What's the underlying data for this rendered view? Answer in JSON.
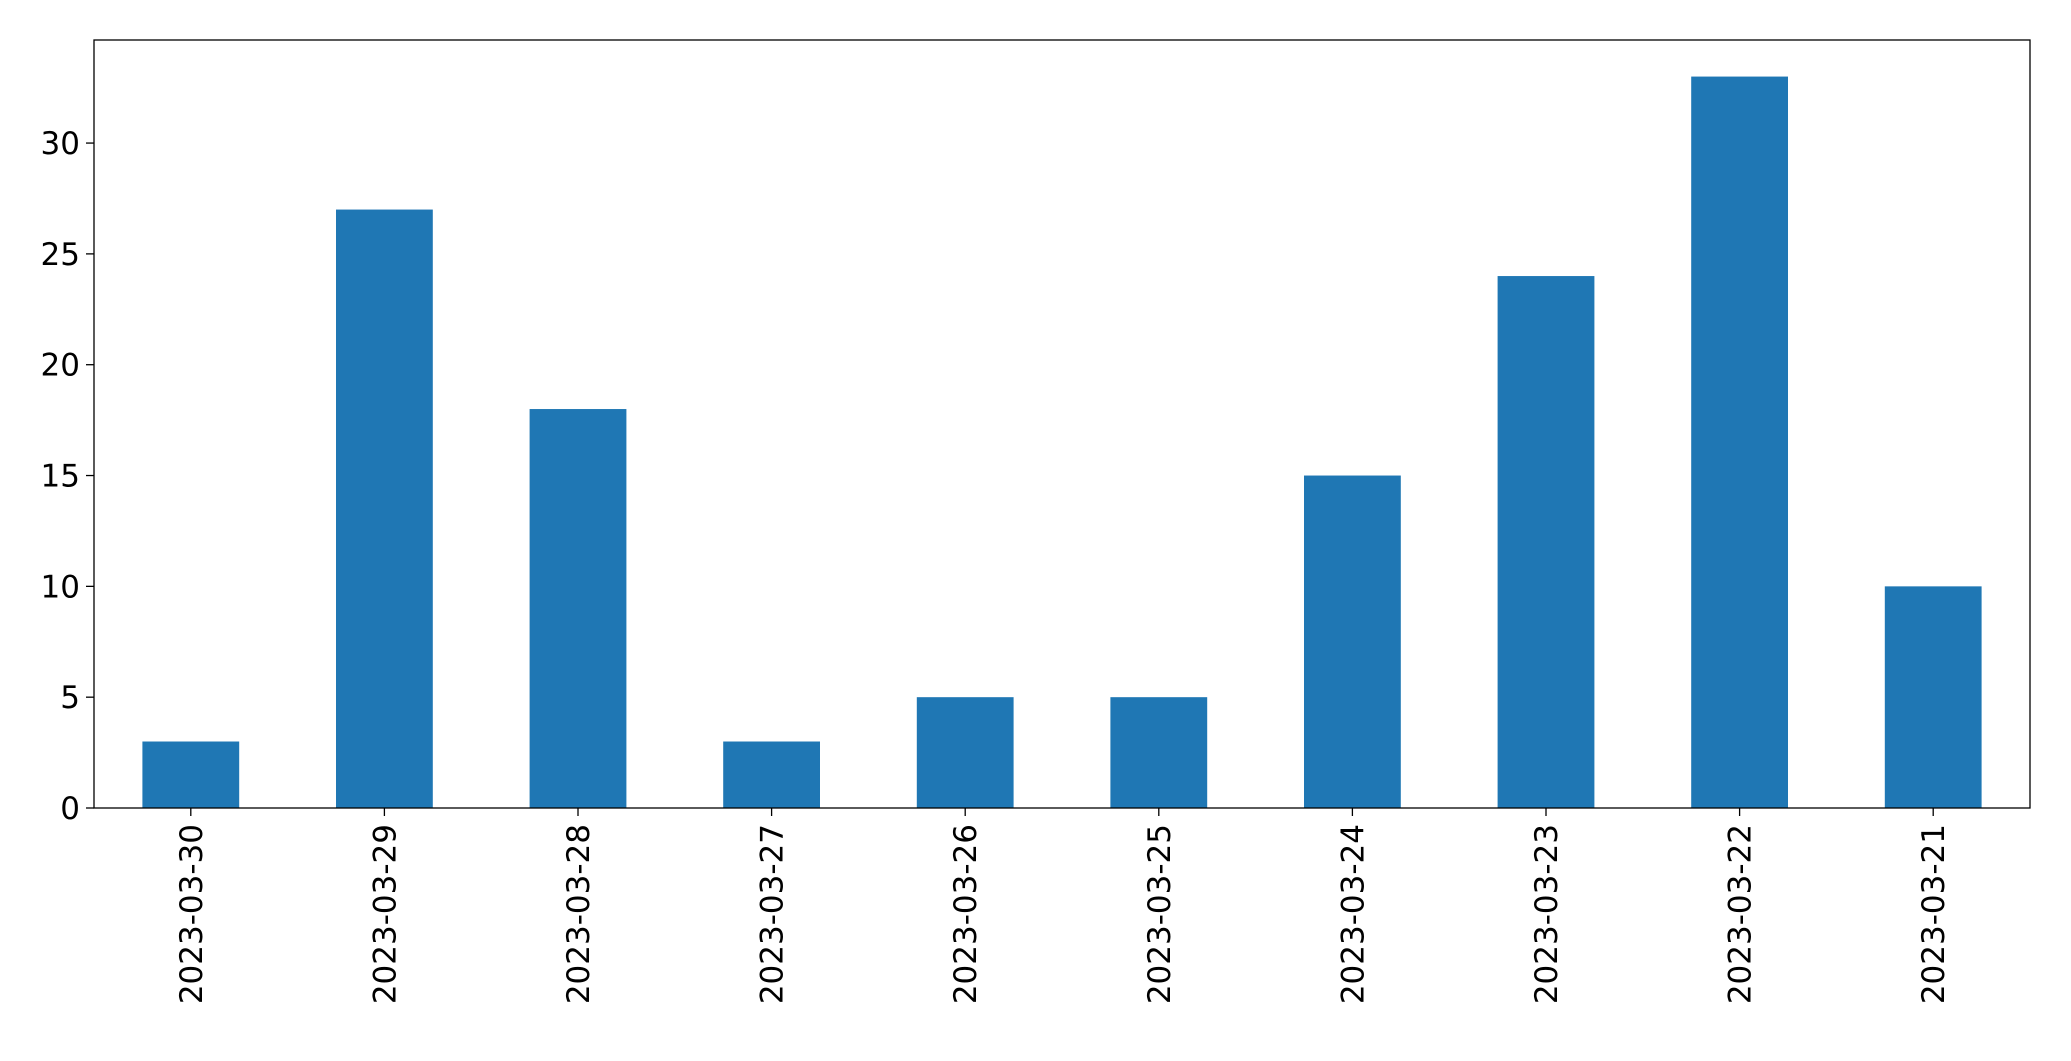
{
  "chart_data": {
    "type": "bar",
    "categories": [
      "2023-03-30",
      "2023-03-29",
      "2023-03-28",
      "2023-03-27",
      "2023-03-26",
      "2023-03-25",
      "2023-03-24",
      "2023-03-23",
      "2023-03-22",
      "2023-03-21"
    ],
    "values": [
      3,
      27,
      18,
      3,
      5,
      5,
      15,
      24,
      33,
      10
    ],
    "color": "#1f77b4",
    "ylim": [
      0,
      34.65
    ],
    "yticks": [
      0,
      5,
      10,
      15,
      20,
      25,
      30
    ],
    "grid": false
  }
}
